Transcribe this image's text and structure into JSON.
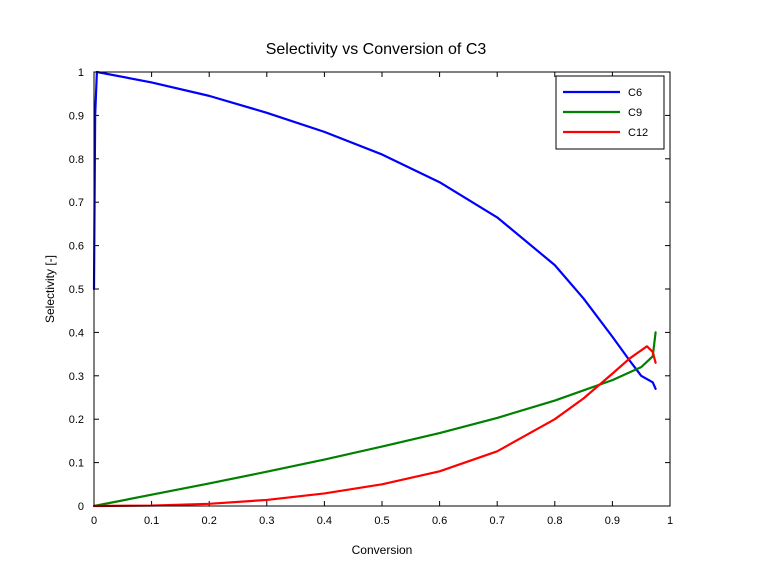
{
  "chart_data": {
    "type": "line",
    "title": "Selectivity vs Conversion of C3",
    "xlabel": "Conversion",
    "ylabel": "Selectivity [-]",
    "xlim": [
      0,
      1
    ],
    "ylim": [
      0,
      1
    ],
    "xticks": [
      "0",
      "0.1",
      "0.2",
      "0.3",
      "0.4",
      "0.5",
      "0.6",
      "0.7",
      "0.8",
      "0.9",
      "1"
    ],
    "yticks": [
      "0",
      "0.1",
      "0.2",
      "0.3",
      "0.4",
      "0.5",
      "0.6",
      "0.7",
      "0.8",
      "0.9",
      "1"
    ],
    "grid": false,
    "legend_position": "top-right",
    "series": [
      {
        "name": "C6",
        "color": "#0000ff",
        "x": [
          0,
          0.002,
          0.005,
          0.1,
          0.2,
          0.3,
          0.4,
          0.5,
          0.6,
          0.7,
          0.8,
          0.85,
          0.9,
          0.93,
          0.95,
          0.97,
          0.975
        ],
        "y": [
          0.5,
          0.9,
          1.0,
          0.976,
          0.945,
          0.906,
          0.862,
          0.81,
          0.746,
          0.665,
          0.555,
          0.478,
          0.39,
          0.335,
          0.3,
          0.285,
          0.27
        ]
      },
      {
        "name": "C9",
        "color": "#008000",
        "x": [
          0,
          0.1,
          0.2,
          0.3,
          0.4,
          0.5,
          0.6,
          0.7,
          0.8,
          0.9,
          0.95,
          0.97,
          0.975
        ],
        "y": [
          0,
          0.026,
          0.052,
          0.079,
          0.107,
          0.137,
          0.168,
          0.203,
          0.243,
          0.29,
          0.32,
          0.345,
          0.4
        ]
      },
      {
        "name": "C12",
        "color": "#ff0000",
        "x": [
          0,
          0.1,
          0.2,
          0.3,
          0.4,
          0.5,
          0.6,
          0.7,
          0.8,
          0.85,
          0.9,
          0.93,
          0.96,
          0.97,
          0.975
        ],
        "y": [
          0,
          0.001,
          0.005,
          0.014,
          0.029,
          0.05,
          0.08,
          0.126,
          0.2,
          0.248,
          0.305,
          0.34,
          0.368,
          0.355,
          0.33
        ]
      }
    ]
  }
}
